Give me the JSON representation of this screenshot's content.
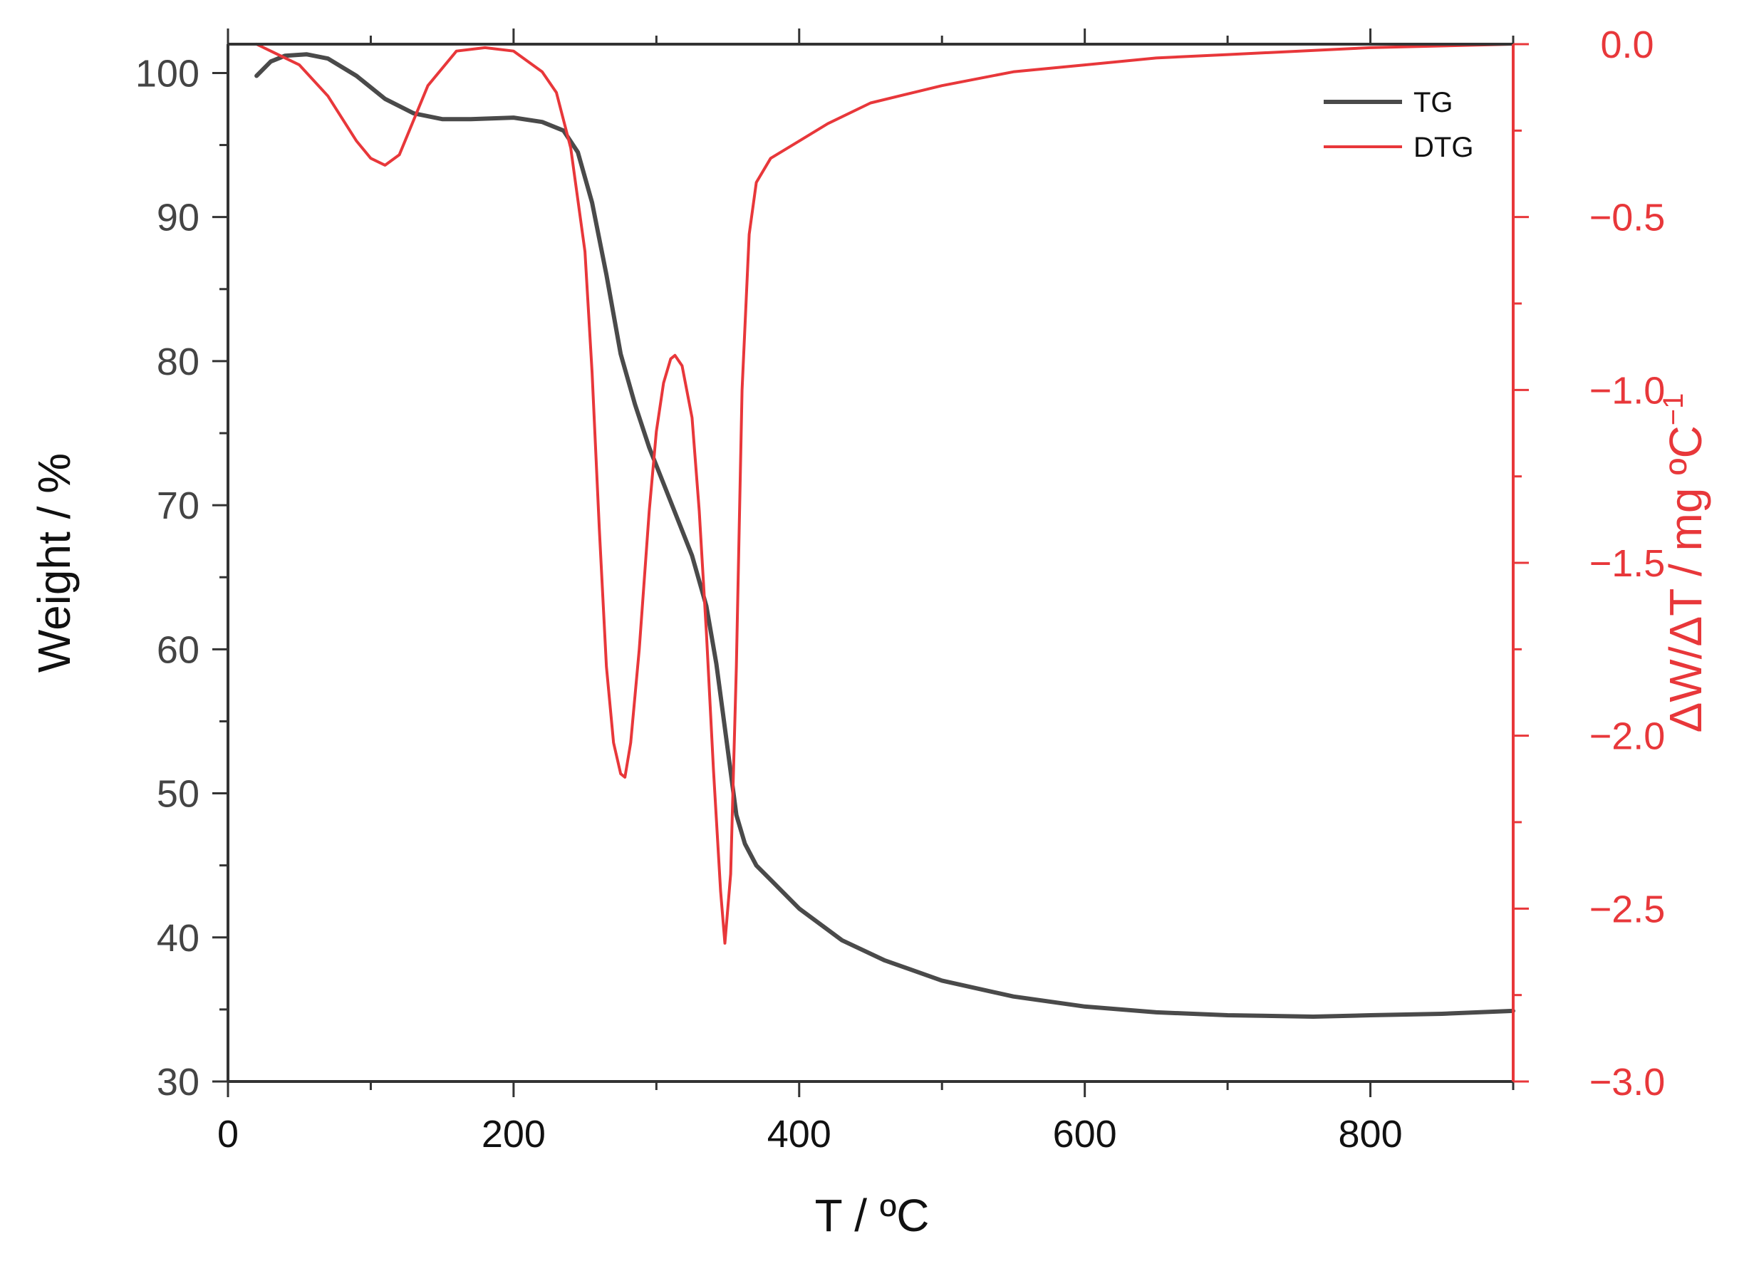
{
  "chart_data": {
    "type": "line",
    "xlabel": "T / ºC",
    "ylabel_left": "Weight / %",
    "ylabel_right_main": "ΔW/ΔT / mg ºC",
    "ylabel_right_sup": "−1",
    "xlim": [
      0,
      900
    ],
    "ylim_left": [
      30,
      102
    ],
    "ylim_right": [
      -3.0,
      0.0
    ],
    "x_ticks": [
      0,
      200,
      400,
      600,
      800
    ],
    "x_tick_labels": [
      "0",
      "200",
      "400",
      "600",
      "800"
    ],
    "y_left_ticks": [
      30,
      40,
      50,
      60,
      70,
      80,
      90,
      100
    ],
    "y_left_tick_labels": [
      "30",
      "40",
      "50",
      "60",
      "70",
      "80",
      "90",
      "100"
    ],
    "y_right_ticks": [
      -3.0,
      -2.5,
      -2.0,
      -1.5,
      -1.0,
      -0.5,
      0.0
    ],
    "y_right_tick_labels": [
      "−3.0",
      "−2.5",
      "−2.0",
      "−1.5",
      "−1.0",
      "−0.5",
      "0.0"
    ],
    "grid": false,
    "legend": {
      "placement": "top-right"
    },
    "colors": {
      "tg": "#4a4a4a",
      "dtg": "#e8373a",
      "axis_left": "#333333",
      "axis_right": "#e8373a"
    },
    "series": [
      {
        "name": "TG",
        "axis": "left",
        "x": [
          20,
          30,
          40,
          55,
          70,
          90,
          110,
          130,
          150,
          170,
          200,
          220,
          235,
          245,
          255,
          265,
          275,
          285,
          295,
          305,
          315,
          325,
          335,
          342,
          350,
          356,
          362,
          370,
          380,
          400,
          430,
          460,
          500,
          550,
          600,
          650,
          700,
          760,
          800,
          850,
          900
        ],
        "y": [
          99.8,
          100.8,
          101.2,
          101.3,
          101.0,
          99.8,
          98.2,
          97.2,
          96.8,
          96.8,
          96.9,
          96.6,
          96.0,
          94.5,
          91.0,
          86.0,
          80.5,
          77.0,
          74.0,
          71.5,
          69.0,
          66.5,
          63.0,
          59.0,
          53.0,
          48.5,
          46.5,
          45.0,
          44.0,
          42.0,
          39.8,
          38.4,
          37.0,
          35.9,
          35.2,
          34.8,
          34.6,
          34.5,
          34.6,
          34.7,
          34.9
        ]
      },
      {
        "name": "DTG",
        "axis": "right",
        "x": [
          20,
          30,
          50,
          70,
          90,
          100,
          110,
          120,
          140,
          160,
          180,
          200,
          220,
          230,
          240,
          250,
          255,
          260,
          265,
          270,
          275,
          278,
          282,
          288,
          295,
          300,
          305,
          310,
          313,
          318,
          325,
          330,
          335,
          340,
          345,
          348,
          352,
          356,
          360,
          365,
          370,
          380,
          400,
          420,
          450,
          500,
          550,
          600,
          650,
          700,
          800,
          900
        ],
        "y": [
          0.0,
          -0.02,
          -0.06,
          -0.15,
          -0.28,
          -0.33,
          -0.35,
          -0.32,
          -0.12,
          -0.02,
          -0.01,
          -0.02,
          -0.08,
          -0.14,
          -0.3,
          -0.6,
          -0.95,
          -1.4,
          -1.8,
          -2.02,
          -2.11,
          -2.12,
          -2.02,
          -1.75,
          -1.35,
          -1.12,
          -0.98,
          -0.91,
          -0.9,
          -0.93,
          -1.08,
          -1.35,
          -1.7,
          -2.1,
          -2.45,
          -2.6,
          -2.4,
          -1.8,
          -1.0,
          -0.55,
          -0.4,
          -0.33,
          -0.28,
          -0.23,
          -0.17,
          -0.12,
          -0.08,
          -0.06,
          -0.04,
          -0.03,
          -0.01,
          0.0
        ]
      }
    ]
  }
}
